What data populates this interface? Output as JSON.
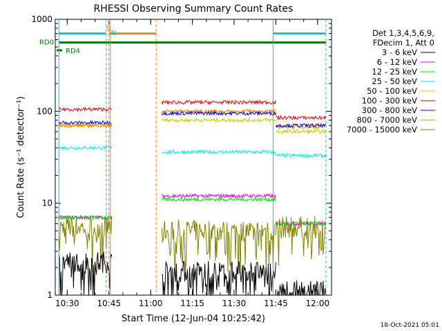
{
  "chart_data": {
    "type": "line",
    "title": "RHESSI Observing Summary Count Rates",
    "xlabel": "Start Time (12-Jun-04 10:25:42)",
    "ylabel": "Count Rate (s⁻¹ detector⁻¹)",
    "yscale": "log",
    "ylim": [
      1,
      1000
    ],
    "xlim": [
      "10:25:42",
      "12:05:00"
    ],
    "x_ticks": [
      "10:30",
      "10:45",
      "11:00",
      "11:15",
      "11:30",
      "11:45",
      "12:00"
    ],
    "y_ticks": [
      "1",
      "10",
      "100",
      "1000"
    ],
    "legend_header": [
      "Det 1,3,4,5,6,9,",
      "FDecim 1, Att 0"
    ],
    "legend_position": "right",
    "series": [
      {
        "name": "3 - 6 keV",
        "color": "#000000"
      },
      {
        "name": "6 - 12 keV",
        "color": "#e000e0"
      },
      {
        "name": "12 - 25 keV",
        "color": "#00e000"
      },
      {
        "name": "25 - 50 keV",
        "color": "#00e8e8"
      },
      {
        "name": "50 - 100 keV",
        "color": "#c8c800"
      },
      {
        "name": "100 - 300 keV",
        "color": "#e00000"
      },
      {
        "name": "300 - 800 keV",
        "color": "#0000e0"
      },
      {
        "name": "800 - 7000 keV",
        "color": "#ff8000"
      },
      {
        "name": "7000 - 15000 keV",
        "color": "#808000"
      }
    ],
    "segments": [
      {
        "from": "10:27",
        "to": "10:46",
        "values": {
          "3 - 6 keV": 2.3,
          "6 - 12 keV": 7,
          "12 - 25 keV": 7,
          "25 - 50 keV": 40,
          "50 - 100 keV": 70,
          "100 - 300 keV": 105,
          "300 - 800 keV": 75,
          "800 - 7000 keV": 70,
          "7000 - 15000 keV": 5.5
        }
      },
      {
        "from": "11:04",
        "to": "11:45",
        "values": {
          "3 - 6 keV": 1.8,
          "6 - 12 keV": 12,
          "12 - 25 keV": 11,
          "25 - 50 keV": 36,
          "50 - 100 keV": 80,
          "100 - 300 keV": 125,
          "300 - 800 keV": 95,
          "800 - 7000 keV": 100,
          "7000 - 15000 keV": 5
        }
      },
      {
        "from": "11:45",
        "to": "12:03",
        "values": {
          "3 - 6 keV": 1.1,
          "6 - 12 keV": 6,
          "12 - 25 keV": 6,
          "25 - 50 keV": 33,
          "50 - 100 keV": 60,
          "100 - 300 keV": 85,
          "300 - 800 keV": 70,
          "800 - 7000 keV": 68,
          "7000 - 15000 keV": 5.5
        }
      }
    ],
    "annotations": [
      {
        "text": "RD0",
        "color": "#007a00"
      },
      {
        "text": "RD4",
        "color": "#007a00"
      },
      {
        "text": "S",
        "color": "#ff8000"
      },
      {
        "text": "N",
        "color": "#00c8c8"
      }
    ],
    "footer_date": "18-Oct-2021 05:01"
  }
}
